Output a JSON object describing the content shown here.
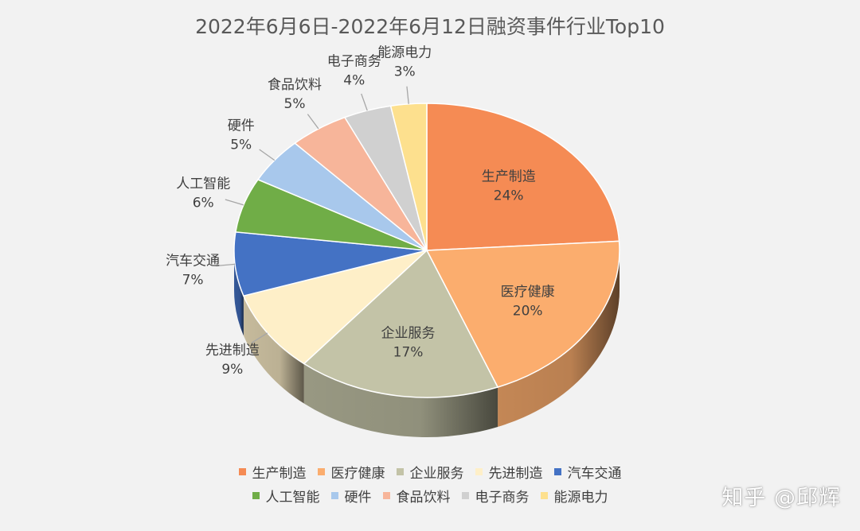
{
  "title": "2022年6月6日-2022年6月12日融资事件行业Top10",
  "watermark": "知乎 @邱辉",
  "chart_data": {
    "type": "pie",
    "title": "2022年6月6日-2022年6月12日融资事件行业Top10",
    "slices": [
      {
        "name": "生产制造",
        "value": 24,
        "label": "24%",
        "color": "#f58b54"
      },
      {
        "name": "医疗健康",
        "value": 20,
        "label": "20%",
        "color": "#fbad6e"
      },
      {
        "name": "企业服务",
        "value": 17,
        "label": "17%",
        "color": "#c3c3a7"
      },
      {
        "name": "先进制造",
        "value": 9,
        "label": "9%",
        "color": "#feefc8"
      },
      {
        "name": "汽车交通",
        "value": 7,
        "label": "7%",
        "color": "#4472c4"
      },
      {
        "name": "人工智能",
        "value": 6,
        "label": "6%",
        "color": "#70ad47"
      },
      {
        "name": "硬件",
        "value": 5,
        "label": "5%",
        "color": "#a8c8ec"
      },
      {
        "name": "食品饮料",
        "value": 5,
        "label": "5%",
        "color": "#f7b59a"
      },
      {
        "name": "电子商务",
        "value": 4,
        "label": "4%",
        "color": "#d0d0d0"
      },
      {
        "name": "能源电力",
        "value": 3,
        "label": "3%",
        "color": "#fde08e"
      }
    ],
    "legend_position": "bottom",
    "style": "3d"
  },
  "legend_rows": [
    [
      "生产制造",
      "医疗健康",
      "企业服务",
      "先进制造",
      "汽车交通"
    ],
    [
      "人工智能",
      "硬件",
      "食品饮料",
      "电子商务",
      "能源电力"
    ]
  ]
}
